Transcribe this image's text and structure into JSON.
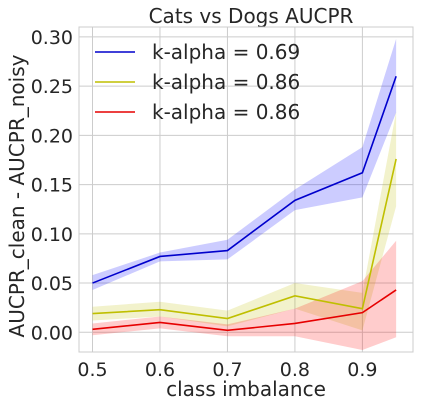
{
  "chart_data": {
    "type": "line",
    "title": "Cats vs Dogs AUCPR",
    "xlabel": "class imbalance",
    "ylabel": "AUCPR_clean - AUCPR_noisy",
    "xlim": [
      0.48,
      0.975
    ],
    "ylim": [
      -0.02,
      0.31
    ],
    "x": [
      0.5,
      0.6,
      0.7,
      0.8,
      0.9,
      0.95
    ],
    "xticks": [
      "0.5",
      "0.6",
      "0.7",
      "0.8",
      "0.9"
    ],
    "xtick_values": [
      0.5,
      0.6,
      0.7,
      0.8,
      0.9
    ],
    "yticks": [
      "0.00",
      "0.05",
      "0.10",
      "0.15",
      "0.20",
      "0.25",
      "0.30"
    ],
    "ytick_values": [
      0.0,
      0.05,
      0.1,
      0.15,
      0.2,
      0.25,
      0.3
    ],
    "grid": true,
    "legend_position": "top-left",
    "series": [
      {
        "name": "k-alpha = 0.69",
        "color": "#0000cc",
        "band_color": "#0000ff",
        "values": [
          0.05,
          0.077,
          0.083,
          0.134,
          0.162,
          0.26
        ],
        "lower": [
          0.043,
          0.072,
          0.074,
          0.124,
          0.137,
          0.223
        ],
        "upper": [
          0.058,
          0.081,
          0.094,
          0.145,
          0.188,
          0.298
        ]
      },
      {
        "name": "k-alpha = 0.86",
        "color": "#bfbf00",
        "band_color": "#bfbf00",
        "values": [
          0.019,
          0.023,
          0.014,
          0.037,
          0.024,
          0.176
        ],
        "lower": [
          0.012,
          0.016,
          0.006,
          0.024,
          0.002,
          0.128
        ],
        "upper": [
          0.026,
          0.031,
          0.022,
          0.05,
          0.04,
          0.224
        ]
      },
      {
        "name": "k-alpha = 0.86",
        "color": "#e60000",
        "band_color": "#ff0000",
        "values": [
          0.003,
          0.01,
          0.002,
          0.009,
          0.02,
          0.043
        ],
        "lower": [
          -0.003,
          0.004,
          -0.004,
          -0.004,
          -0.018,
          -0.005
        ],
        "upper": [
          0.009,
          0.016,
          0.008,
          0.024,
          0.052,
          0.093
        ]
      }
    ]
  }
}
